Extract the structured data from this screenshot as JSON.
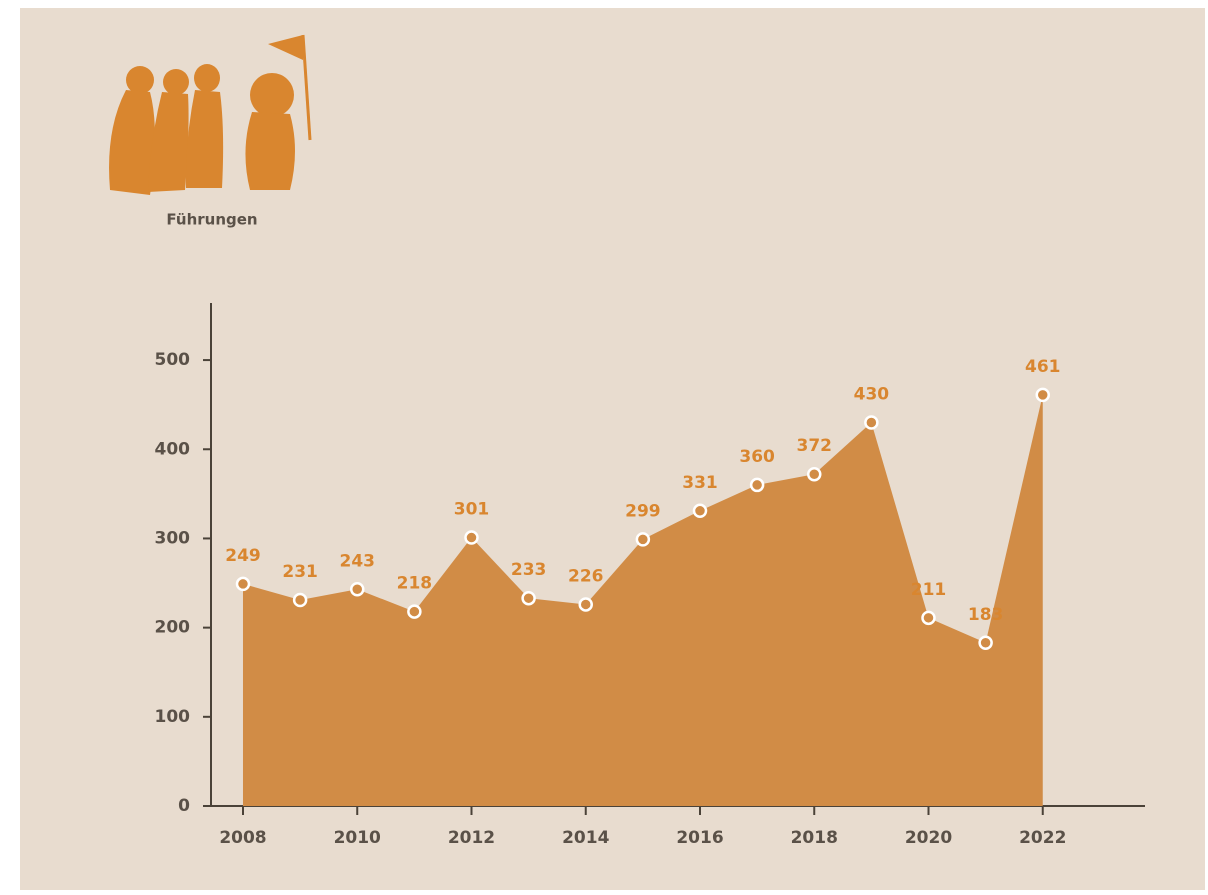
{
  "chart_data": {
    "type": "area",
    "title": "Führungen",
    "x": [
      2008,
      2009,
      2010,
      2011,
      2012,
      2013,
      2014,
      2015,
      2016,
      2017,
      2018,
      2019,
      2020,
      2021,
      2022
    ],
    "values": [
      249,
      231,
      243,
      218,
      301,
      233,
      226,
      299,
      331,
      360,
      372,
      430,
      211,
      183,
      461
    ],
    "color": "#d18c46",
    "xlim": [
      2007.44,
      2023.79
    ],
    "xticks": [
      2008,
      2010,
      2012,
      2014,
      2016,
      2018,
      2020,
      2022
    ],
    "ylim": [
      0,
      564
    ],
    "yticks": [
      0,
      100,
      200,
      300,
      400,
      500
    ],
    "grid": false
  }
}
